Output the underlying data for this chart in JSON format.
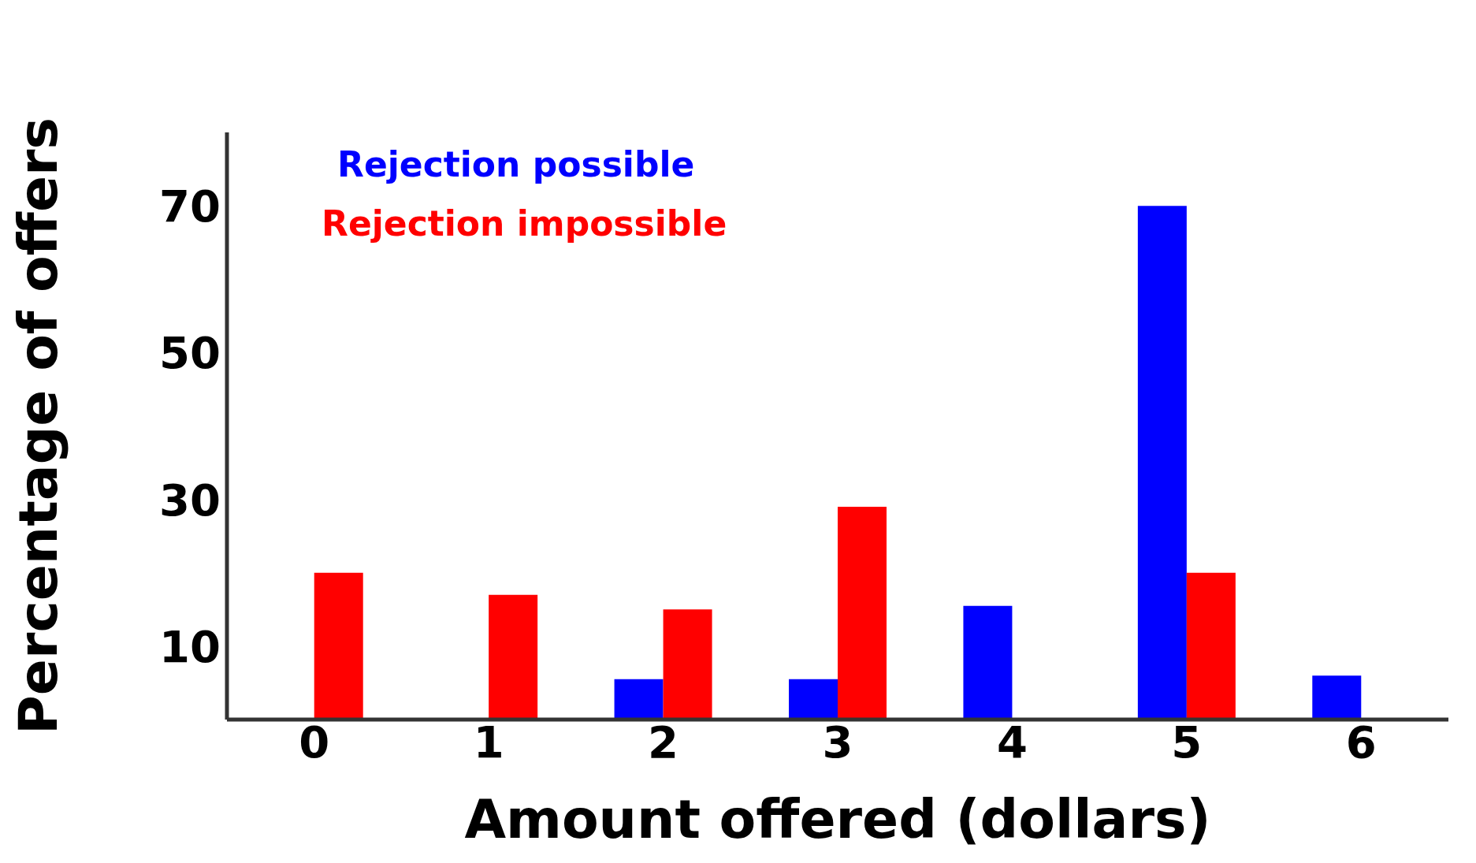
{
  "chart_data": {
    "type": "bar",
    "xlabel": "Amount offered (dollars)",
    "ylabel": "Percentage of offers",
    "categories": [
      "0",
      "1",
      "2",
      "3",
      "4",
      "5",
      "6"
    ],
    "series": [
      {
        "name": "Rejection possible",
        "color": "#0000ff",
        "values": [
          null,
          null,
          5.5,
          5.5,
          15.5,
          70,
          6
        ]
      },
      {
        "name": "Rejection impossible",
        "color": "#ff0000",
        "values": [
          20,
          17,
          15,
          29,
          null,
          20,
          null
        ]
      }
    ],
    "ylim": [
      0,
      80
    ],
    "yticks": [
      10,
      30,
      50,
      70
    ],
    "grid": false,
    "legend": "top left"
  }
}
